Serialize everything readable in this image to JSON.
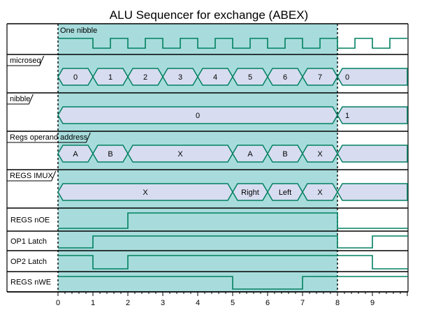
{
  "title": "ALU Sequencer for exchange (ABEX)",
  "colors": {
    "signal": "#008060",
    "highlight": "#a8dcdc",
    "bus_fill": "#d8dcf0",
    "frame": "#000000"
  },
  "time_axis": {
    "ticks": [
      "0",
      "1",
      "2",
      "3",
      "4",
      "5",
      "6",
      "7",
      "8",
      "9"
    ],
    "highlight_range": [
      0,
      8
    ]
  },
  "annotation": "One nibble",
  "rows": [
    {
      "label": "",
      "type": "clock",
      "start": 1,
      "period": 1
    },
    {
      "label": "microseq",
      "type": "bus",
      "boxed_label": true,
      "segments": [
        {
          "from": 0,
          "to": 1,
          "text": "0"
        },
        {
          "from": 1,
          "to": 2,
          "text": "1"
        },
        {
          "from": 2,
          "to": 3,
          "text": "2"
        },
        {
          "from": 3,
          "to": 4,
          "text": "3"
        },
        {
          "from": 4,
          "to": 5,
          "text": "4"
        },
        {
          "from": 5,
          "to": 6,
          "text": "5"
        },
        {
          "from": 6,
          "to": 7,
          "text": "6"
        },
        {
          "from": 7,
          "to": 8,
          "text": "7"
        },
        {
          "from": 8,
          "to": 10,
          "text": "0"
        }
      ]
    },
    {
      "label": "nibble",
      "type": "bus",
      "boxed_label": true,
      "segments": [
        {
          "from": 0,
          "to": 8,
          "text": "0"
        },
        {
          "from": 8,
          "to": 10,
          "text": "1"
        }
      ]
    },
    {
      "label": "Regs operand address",
      "type": "bus",
      "boxed_label": true,
      "segments": [
        {
          "from": 0,
          "to": 1,
          "text": "A"
        },
        {
          "from": 1,
          "to": 2,
          "text": "B"
        },
        {
          "from": 2,
          "to": 5,
          "text": "X"
        },
        {
          "from": 5,
          "to": 6,
          "text": "A"
        },
        {
          "from": 6,
          "to": 7,
          "text": "B"
        },
        {
          "from": 7,
          "to": 8,
          "text": "X"
        },
        {
          "from": 8,
          "to": 10,
          "text": ""
        }
      ]
    },
    {
      "label": "REGS IMUX",
      "type": "bus",
      "boxed_label": true,
      "segments": [
        {
          "from": 0,
          "to": 5,
          "text": "X"
        },
        {
          "from": 5,
          "to": 6,
          "text": "Right"
        },
        {
          "from": 6,
          "to": 7,
          "text": "Left"
        },
        {
          "from": 7,
          "to": 8,
          "text": "X"
        },
        {
          "from": 8,
          "to": 10,
          "text": ""
        }
      ]
    },
    {
      "label": "REGS nOE",
      "type": "digital",
      "boxed_label": false,
      "points": [
        [
          0,
          0
        ],
        [
          2,
          1
        ],
        [
          8,
          0
        ]
      ]
    },
    {
      "label": "OP1 Latch",
      "type": "digital",
      "boxed_label": false,
      "points": [
        [
          0,
          0
        ],
        [
          1,
          1
        ],
        [
          8,
          0
        ],
        [
          9,
          1
        ]
      ]
    },
    {
      "label": "OP2 Latch",
      "type": "digital",
      "boxed_label": false,
      "points": [
        [
          0,
          1
        ],
        [
          1,
          0
        ],
        [
          2,
          1
        ],
        [
          9,
          0
        ]
      ]
    },
    {
      "label": "REGS nWE",
      "type": "digital",
      "boxed_label": false,
      "points": [
        [
          0,
          1
        ],
        [
          5,
          0
        ],
        [
          7,
          1
        ]
      ]
    }
  ]
}
